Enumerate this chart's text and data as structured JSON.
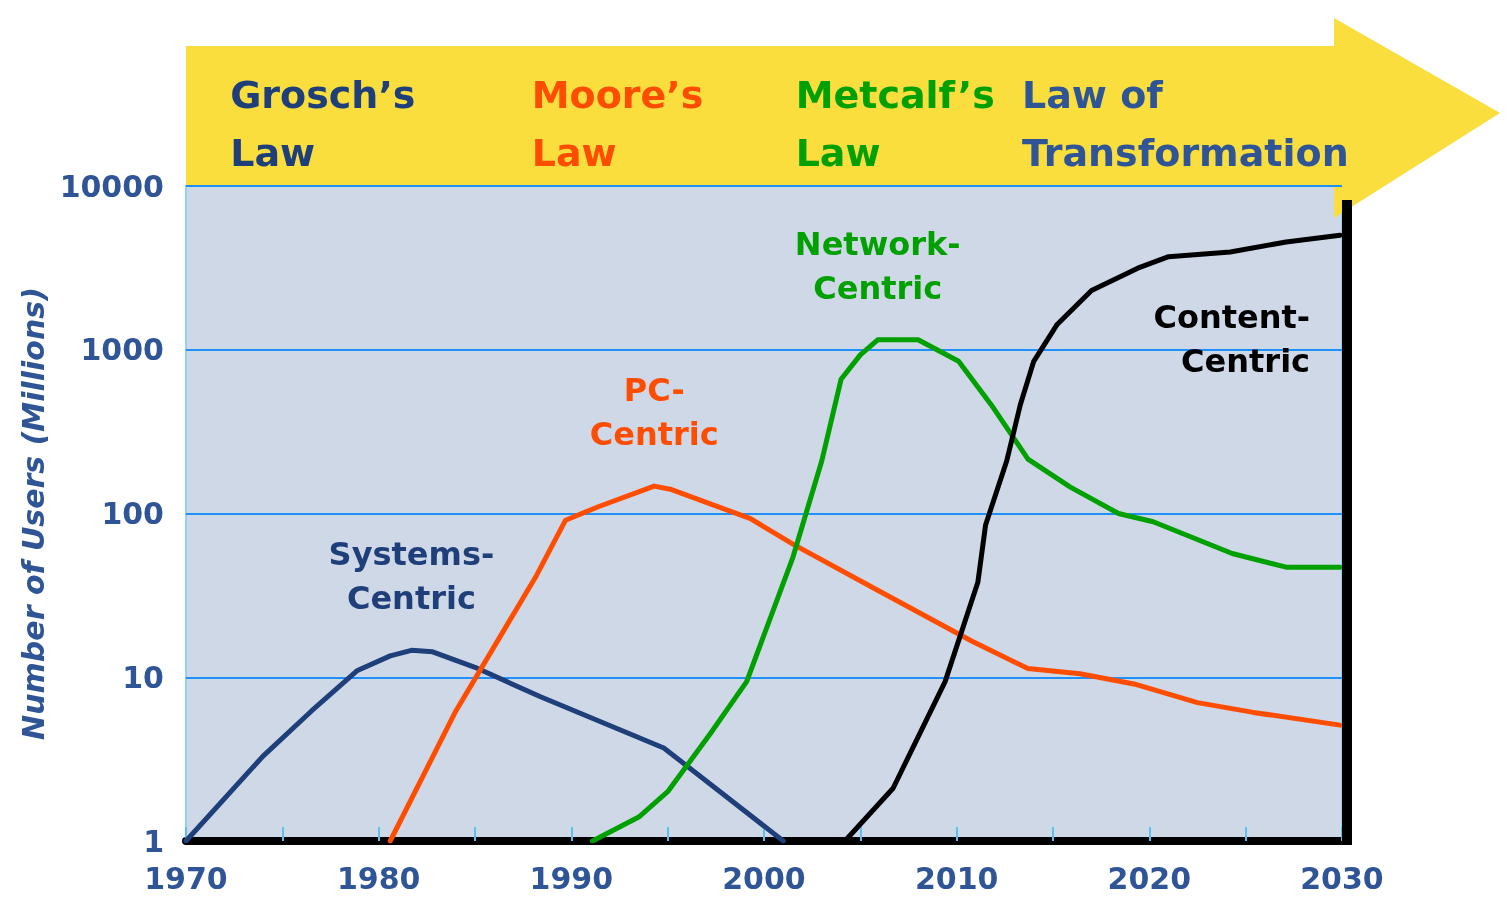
{
  "chart_data": {
    "type": "line",
    "ylabel": "Number of Users (Millions)",
    "log": "y",
    "ylim": [
      1,
      10000
    ],
    "yticks": [
      1,
      10,
      100,
      1000,
      10000
    ],
    "xlim": [
      1970,
      2030
    ],
    "xticks": [
      1970,
      {
        "value": 1975,
        "label": null
      },
      1980,
      {
        "value": 1985,
        "label": null
      },
      1990,
      {
        "value": 1995,
        "label": null
      },
      2000,
      {
        "value": 2005,
        "label": null
      },
      2010,
      {
        "value": 2015,
        "label": null
      },
      2020,
      {
        "value": 2025,
        "label": null
      },
      2030
    ],
    "grid": "y",
    "legend": false,
    "marker": "none",
    "line_style": "solid",
    "annotations": [
      "Grosch’s Law",
      "Moore’s Law",
      "Metcalf’s Law",
      "Law of Transformation"
    ],
    "series": [
      {
        "name": "Systems-Centric",
        "color": "#1f3f7a",
        "x": [
          1970,
          1974,
          1976.5,
          1978.9,
          1980.6,
          1981.7,
          1982.8,
          1985,
          1988.4,
          1994.8,
          2001
        ],
        "values": [
          1,
          3.3,
          6.2,
          11,
          13.5,
          14.6,
          14.3,
          11.5,
          7.6,
          3.7,
          1
        ]
      },
      {
        "name": "PC-Centric",
        "color": "#ff4d00",
        "x": [
          1980.6,
          1984,
          1988.2,
          1989.7,
          1991.4,
          1994.3,
          1995.2,
          1999.3,
          2001.5,
          2005.9,
          2010.8,
          2013.7,
          2016.4,
          2019.2,
          2022.5,
          2025.4,
          2029.9
        ],
        "values": [
          1,
          6.2,
          42,
          91,
          110,
          147,
          140,
          93,
          65,
          34,
          16.6,
          11.3,
          10.5,
          9.1,
          7,
          6.1,
          5.1
        ]
      },
      {
        "name": "Network-Centric",
        "color": "#00a000",
        "x": [
          1991.1,
          1993.5,
          1995,
          1997.2,
          1999.1,
          2001.5,
          2003,
          2004,
          2005,
          2005.9,
          2008,
          2010.1,
          2011.8,
          2013.7,
          2015.9,
          2018.4,
          2020.2,
          2024.3,
          2027.1,
          2029.9
        ],
        "values": [
          1,
          1.4,
          2,
          4.5,
          9.4,
          54,
          210,
          660,
          930,
          1150,
          1150,
          850,
          460,
          215,
          145,
          100,
          89,
          57,
          47,
          47
        ]
      },
      {
        "name": "Content-Centric",
        "color": "#000000",
        "x": [
          2004.2,
          2006.7,
          2009.4,
          2011.1,
          2011.5,
          2012.6,
          2013.3,
          2014,
          2015.2,
          2017,
          2019.4,
          2021,
          2024.2,
          2027.1,
          2029.9
        ],
        "values": [
          1,
          2.1,
          9.4,
          38,
          85,
          210,
          460,
          850,
          1420,
          2300,
          3150,
          3700,
          3950,
          4550,
          5000
        ]
      }
    ]
  }
}
